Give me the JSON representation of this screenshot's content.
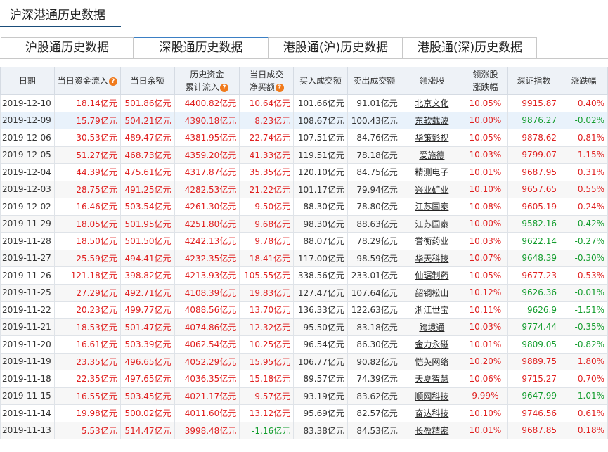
{
  "page_title": "沪深港通历史数据",
  "tabs": [
    {
      "label": "沪股通历史数据"
    },
    {
      "label": "深股通历史数据"
    },
    {
      "label": "港股通(沪)历史数据"
    },
    {
      "label": "港股通(深)历史数据"
    }
  ],
  "active_tab": 1,
  "table": {
    "headers": {
      "date": "日期",
      "inflow": "当日资金流入",
      "balance": "当日余额",
      "cum1": "历史资金",
      "cum2": "累计流入",
      "net1": "当日成交",
      "net2": "净买额",
      "buy": "买入成交额",
      "sell": "卖出成交额",
      "leader": "领涨股",
      "lchg1": "领涨股",
      "lchg2": "涨跌幅",
      "index": "深证指数",
      "chg": "涨跌幅"
    },
    "rows": [
      {
        "date": "2019-12-10",
        "inflow": "18.14亿元",
        "balance": "501.86亿元",
        "cum": "4400.82亿元",
        "net": "10.64亿元",
        "buy": "101.66亿元",
        "sell": "91.01亿元",
        "leader": "北京文化",
        "lchg": "10.05%",
        "index": "9915.87",
        "chg": "0.40%"
      },
      {
        "date": "2019-12-09",
        "inflow": "15.79亿元",
        "balance": "504.21亿元",
        "cum": "4390.18亿元",
        "net": "8.23亿元",
        "buy": "108.67亿元",
        "sell": "100.43亿元",
        "leader": "东软载波",
        "lchg": "10.00%",
        "index": "9876.27",
        "chg": "-0.02%"
      },
      {
        "date": "2019-12-06",
        "inflow": "30.53亿元",
        "balance": "489.47亿元",
        "cum": "4381.95亿元",
        "net": "22.74亿元",
        "buy": "107.51亿元",
        "sell": "84.76亿元",
        "leader": "华策影视",
        "lchg": "10.05%",
        "index": "9878.62",
        "chg": "0.81%"
      },
      {
        "date": "2019-12-05",
        "inflow": "51.27亿元",
        "balance": "468.73亿元",
        "cum": "4359.20亿元",
        "net": "41.33亿元",
        "buy": "119.51亿元",
        "sell": "78.18亿元",
        "leader": "爱施德",
        "lchg": "10.03%",
        "index": "9799.07",
        "chg": "1.15%"
      },
      {
        "date": "2019-12-04",
        "inflow": "44.39亿元",
        "balance": "475.61亿元",
        "cum": "4317.87亿元",
        "net": "35.35亿元",
        "buy": "120.10亿元",
        "sell": "84.75亿元",
        "leader": "精测电子",
        "lchg": "10.01%",
        "index": "9687.95",
        "chg": "0.31%"
      },
      {
        "date": "2019-12-03",
        "inflow": "28.75亿元",
        "balance": "491.25亿元",
        "cum": "4282.53亿元",
        "net": "21.22亿元",
        "buy": "101.17亿元",
        "sell": "79.94亿元",
        "leader": "兴业矿业",
        "lchg": "10.10%",
        "index": "9657.65",
        "chg": "0.55%"
      },
      {
        "date": "2019-12-02",
        "inflow": "16.46亿元",
        "balance": "503.54亿元",
        "cum": "4261.30亿元",
        "net": "9.50亿元",
        "buy": "88.30亿元",
        "sell": "78.80亿元",
        "leader": "江苏国泰",
        "lchg": "10.08%",
        "index": "9605.19",
        "chg": "0.24%"
      },
      {
        "date": "2019-11-29",
        "inflow": "18.05亿元",
        "balance": "501.95亿元",
        "cum": "4251.80亿元",
        "net": "9.68亿元",
        "buy": "98.30亿元",
        "sell": "88.63亿元",
        "leader": "江苏国泰",
        "lchg": "10.00%",
        "index": "9582.16",
        "chg": "-0.42%"
      },
      {
        "date": "2019-11-28",
        "inflow": "18.50亿元",
        "balance": "501.50亿元",
        "cum": "4242.13亿元",
        "net": "9.78亿元",
        "buy": "88.07亿元",
        "sell": "78.29亿元",
        "leader": "誉衡药业",
        "lchg": "10.03%",
        "index": "9622.14",
        "chg": "-0.27%"
      },
      {
        "date": "2019-11-27",
        "inflow": "25.59亿元",
        "balance": "494.41亿元",
        "cum": "4232.35亿元",
        "net": "18.41亿元",
        "buy": "117.00亿元",
        "sell": "98.59亿元",
        "leader": "华天科技",
        "lchg": "10.07%",
        "index": "9648.39",
        "chg": "-0.30%"
      },
      {
        "date": "2019-11-26",
        "inflow": "121.18亿元",
        "balance": "398.82亿元",
        "cum": "4213.93亿元",
        "net": "105.55亿元",
        "buy": "338.56亿元",
        "sell": "233.01亿元",
        "leader": "仙琚制药",
        "lchg": "10.05%",
        "index": "9677.23",
        "chg": "0.53%"
      },
      {
        "date": "2019-11-25",
        "inflow": "27.29亿元",
        "balance": "492.71亿元",
        "cum": "4108.39亿元",
        "net": "19.83亿元",
        "buy": "127.47亿元",
        "sell": "107.64亿元",
        "leader": "韶钢松山",
        "lchg": "10.12%",
        "index": "9626.36",
        "chg": "-0.01%"
      },
      {
        "date": "2019-11-22",
        "inflow": "20.23亿元",
        "balance": "499.77亿元",
        "cum": "4088.56亿元",
        "net": "13.70亿元",
        "buy": "136.33亿元",
        "sell": "122.63亿元",
        "leader": "浙江世宝",
        "lchg": "10.11%",
        "index": "9626.9",
        "chg": "-1.51%"
      },
      {
        "date": "2019-11-21",
        "inflow": "18.53亿元",
        "balance": "501.47亿元",
        "cum": "4074.86亿元",
        "net": "12.32亿元",
        "buy": "95.50亿元",
        "sell": "83.18亿元",
        "leader": "跨境通",
        "lchg": "10.03%",
        "index": "9774.44",
        "chg": "-0.35%"
      },
      {
        "date": "2019-11-20",
        "inflow": "16.61亿元",
        "balance": "503.39亿元",
        "cum": "4062.54亿元",
        "net": "10.25亿元",
        "buy": "96.54亿元",
        "sell": "86.30亿元",
        "leader": "金力永磁",
        "lchg": "10.01%",
        "index": "9809.05",
        "chg": "-0.82%"
      },
      {
        "date": "2019-11-19",
        "inflow": "23.35亿元",
        "balance": "496.65亿元",
        "cum": "4052.29亿元",
        "net": "15.95亿元",
        "buy": "106.77亿元",
        "sell": "90.82亿元",
        "leader": "恺英网络",
        "lchg": "10.20%",
        "index": "9889.75",
        "chg": "1.80%"
      },
      {
        "date": "2019-11-18",
        "inflow": "22.35亿元",
        "balance": "497.65亿元",
        "cum": "4036.35亿元",
        "net": "15.18亿元",
        "buy": "89.57亿元",
        "sell": "74.39亿元",
        "leader": "天夏智慧",
        "lchg": "10.06%",
        "index": "9715.27",
        "chg": "0.70%"
      },
      {
        "date": "2019-11-15",
        "inflow": "16.55亿元",
        "balance": "503.45亿元",
        "cum": "4021.17亿元",
        "net": "9.57亿元",
        "buy": "93.19亿元",
        "sell": "83.62亿元",
        "leader": "顺网科技",
        "lchg": "9.99%",
        "index": "9647.99",
        "chg": "-1.01%"
      },
      {
        "date": "2019-11-14",
        "inflow": "19.98亿元",
        "balance": "500.02亿元",
        "cum": "4011.60亿元",
        "net": "13.12亿元",
        "buy": "95.69亿元",
        "sell": "82.57亿元",
        "leader": "奋达科技",
        "lchg": "10.10%",
        "index": "9746.56",
        "chg": "0.61%"
      },
      {
        "date": "2019-11-13",
        "inflow": "5.53亿元",
        "balance": "514.47亿元",
        "cum": "3998.48亿元",
        "net": "-1.16亿元",
        "buy": "83.38亿元",
        "sell": "84.53亿元",
        "leader": "长盈精密",
        "lchg": "10.01%",
        "index": "9687.85",
        "chg": "0.18%"
      }
    ]
  },
  "colors": {
    "positive": "#e02020",
    "negative": "#129c2c",
    "info_icon": "#f07a1c"
  }
}
